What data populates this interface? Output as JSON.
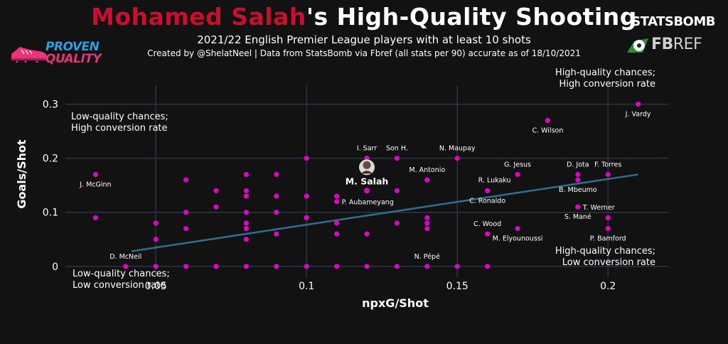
{
  "header": {
    "title_highlight": "Mohamed Salah",
    "title_rest": "'s High-Quality Shooting",
    "subtitle": "2021/22 English Premier League players with at least 10 shots",
    "credit": "Created by @ShelatNeel | Data from StatsBomb via Fbref (all stats per 90) accurate as of 18/10/2021"
  },
  "logos": {
    "left_line1": "PROVEN",
    "left_line2": "QUALITY",
    "statsbomb": "STATSBOMB",
    "fbref_bold": "FB",
    "fbref_rest": "REF"
  },
  "colors": {
    "background": "#121212",
    "title_highlight": "#c8102e",
    "points": "#e000c8",
    "highlight_point": "#ffffff",
    "trend": "#2e6e8e",
    "grid": "#2b3346"
  },
  "chart_data": {
    "type": "scatter",
    "xlabel": "npxG/Shot",
    "ylabel": "Goals/Shot",
    "xlim": [
      0.02,
      0.22
    ],
    "ylim": [
      -0.02,
      0.335
    ],
    "x_ticks": [
      0.05,
      0.1,
      0.15,
      0.2
    ],
    "x_tick_labels": [
      "0.05",
      "0.1",
      "0.15",
      "0.2"
    ],
    "y_ticks": [
      0,
      0.1,
      0.2,
      0.3
    ],
    "y_tick_labels": [
      "0",
      "0.1",
      "0.2",
      "0.3"
    ],
    "grid": true,
    "trend_line": {
      "x1": 0.042,
      "y1": 0.028,
      "x2": 0.21,
      "y2": 0.17
    },
    "quadrant_labels": [
      {
        "id": "high-high",
        "lines": [
          "High-quality chances;",
          "High conversion rate"
        ]
      },
      {
        "id": "low-high",
        "lines": [
          "Low-quality chances;",
          "High conversion rate"
        ]
      },
      {
        "id": "high-low",
        "lines": [
          "High-quality chances;",
          "Low conversion rate"
        ]
      },
      {
        "id": "low-low",
        "lines": [
          "Low-quality chances;",
          "Low conversion rate"
        ]
      }
    ],
    "highlight": {
      "name": "M. Salah",
      "x": 0.12,
      "y": 0.14
    },
    "labeled_points": [
      {
        "name": "J. Vardy",
        "x": 0.21,
        "y": 0.3,
        "pos": "below"
      },
      {
        "name": "C. Wilson",
        "x": 0.18,
        "y": 0.27,
        "pos": "below"
      },
      {
        "name": "I. Sarr",
        "x": 0.12,
        "y": 0.2,
        "pos": "above"
      },
      {
        "name": "Son H.",
        "x": 0.13,
        "y": 0.2,
        "pos": "above"
      },
      {
        "name": "N. Maupay",
        "x": 0.15,
        "y": 0.2,
        "pos": "above"
      },
      {
        "name": "M. Antonio",
        "x": 0.14,
        "y": 0.16,
        "pos": "above"
      },
      {
        "name": "G. Jesus",
        "x": 0.17,
        "y": 0.17,
        "pos": "above"
      },
      {
        "name": "D. Jota",
        "x": 0.19,
        "y": 0.17,
        "pos": "above"
      },
      {
        "name": "F. Torres",
        "x": 0.2,
        "y": 0.17,
        "pos": "above"
      },
      {
        "name": "R. Lukaku",
        "x": 0.16,
        "y": 0.14,
        "pos": "above-right"
      },
      {
        "name": "B. Mbeumo",
        "x": 0.19,
        "y": 0.16,
        "pos": "below"
      },
      {
        "name": "C. Ronaldo",
        "x": 0.16,
        "y": 0.14,
        "pos": "below"
      },
      {
        "name": "J. McGinn",
        "x": 0.03,
        "y": 0.17,
        "pos": "below"
      },
      {
        "name": "P. Aubameyang",
        "x": 0.11,
        "y": 0.12,
        "pos": "right"
      },
      {
        "name": "T. Werner",
        "x": 0.19,
        "y": 0.11,
        "pos": "right"
      },
      {
        "name": "S. Mané",
        "x": 0.19,
        "y": 0.11,
        "pos": "below"
      },
      {
        "name": "C. Wood",
        "x": 0.16,
        "y": 0.06,
        "pos": "above"
      },
      {
        "name": "M. Elyounoussi",
        "x": 0.17,
        "y": 0.07,
        "pos": "below"
      },
      {
        "name": "P. Bamford",
        "x": 0.2,
        "y": 0.07,
        "pos": "below"
      },
      {
        "name": "D. McNeil",
        "x": 0.04,
        "y": 0.0,
        "pos": "above"
      },
      {
        "name": "N. Pépé",
        "x": 0.14,
        "y": 0.0,
        "pos": "above"
      }
    ],
    "other_points": [
      [
        0.03,
        0.09
      ],
      [
        0.05,
        0.08
      ],
      [
        0.05,
        0.05
      ],
      [
        0.05,
        0.0
      ],
      [
        0.06,
        0.16
      ],
      [
        0.06,
        0.1
      ],
      [
        0.06,
        0.07
      ],
      [
        0.06,
        0.0
      ],
      [
        0.07,
        0.14
      ],
      [
        0.07,
        0.11
      ],
      [
        0.07,
        0.0
      ],
      [
        0.08,
        0.17
      ],
      [
        0.08,
        0.14
      ],
      [
        0.08,
        0.13
      ],
      [
        0.08,
        0.1
      ],
      [
        0.08,
        0.08
      ],
      [
        0.08,
        0.07
      ],
      [
        0.08,
        0.05
      ],
      [
        0.08,
        0.0
      ],
      [
        0.09,
        0.17
      ],
      [
        0.09,
        0.13
      ],
      [
        0.09,
        0.1
      ],
      [
        0.09,
        0.06
      ],
      [
        0.09,
        0.0
      ],
      [
        0.1,
        0.2
      ],
      [
        0.1,
        0.13
      ],
      [
        0.1,
        0.09
      ],
      [
        0.1,
        0.0
      ],
      [
        0.11,
        0.13
      ],
      [
        0.11,
        0.08
      ],
      [
        0.11,
        0.06
      ],
      [
        0.11,
        0.0
      ],
      [
        0.12,
        0.06
      ],
      [
        0.12,
        0.0
      ],
      [
        0.13,
        0.14
      ],
      [
        0.13,
        0.08
      ],
      [
        0.13,
        0.0
      ],
      [
        0.14,
        0.09
      ],
      [
        0.14,
        0.08
      ],
      [
        0.14,
        0.07
      ],
      [
        0.15,
        0.0
      ],
      [
        0.16,
        0.0
      ],
      [
        0.2,
        0.09
      ]
    ]
  }
}
